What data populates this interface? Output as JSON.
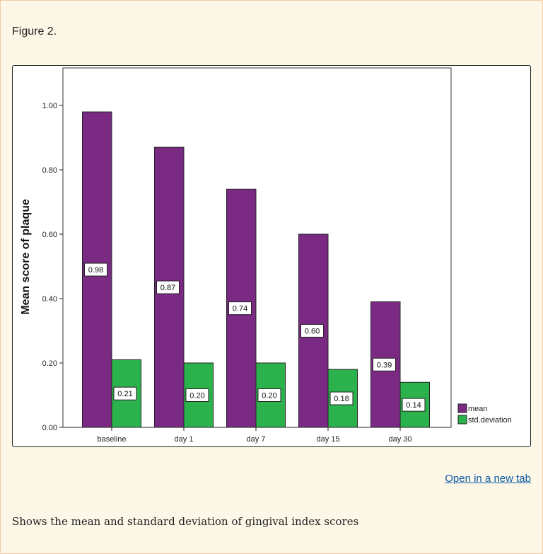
{
  "figure_title": "Figure 2.",
  "open_link": "Open in a new tab",
  "caption": "Shows the mean and standard deviation of gingival index scores",
  "chart_data": {
    "type": "bar",
    "categories": [
      "baseline",
      "day 1",
      "day 7",
      "day 15",
      "day 30"
    ],
    "series": [
      {
        "name": "mean",
        "values": [
          0.98,
          0.87,
          0.74,
          0.6,
          0.39
        ],
        "labels": [
          "0.98",
          "0.87",
          "0.74",
          "0.60",
          "0.39"
        ],
        "color": "#7b2a84"
      },
      {
        "name": "std.deviation",
        "values": [
          0.21,
          0.2,
          0.2,
          0.18,
          0.14
        ],
        "labels": [
          "0.21",
          "0.20",
          "0.20",
          "0.18",
          "0.14"
        ],
        "color": "#2bb24c"
      }
    ],
    "ylabel": "Mean score of plaque",
    "xlabel": "",
    "ylim": [
      0,
      1.1
    ],
    "yticks": [
      "0.00",
      "0.20",
      "0.40",
      "0.60",
      "0.80",
      "1.00"
    ],
    "grid": false,
    "legend": "bottom-right"
  }
}
